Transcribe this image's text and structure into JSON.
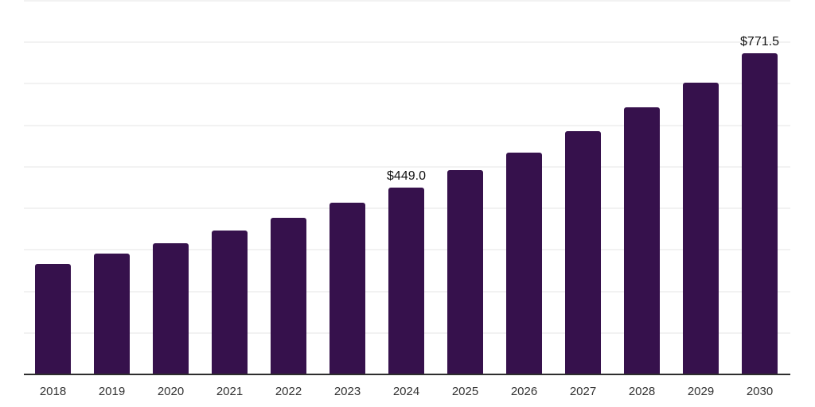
{
  "chart": {
    "background_color": "#ffffff",
    "bar_color": "#36114C",
    "gridline_color": "#f2f2f2",
    "axis_line_color": "#2e2e2e",
    "tick_label_color": "#333333",
    "data_label_color": "#111111"
  },
  "chart_data": {
    "type": "bar",
    "title": "",
    "xlabel": "",
    "ylabel": "",
    "categories": [
      "2018",
      "2019",
      "2020",
      "2021",
      "2022",
      "2023",
      "2024",
      "2025",
      "2026",
      "2027",
      "2028",
      "2029",
      "2030"
    ],
    "values": [
      265,
      289,
      314,
      344,
      375,
      411,
      449.0,
      490,
      533,
      584,
      641,
      701,
      771.5
    ],
    "data_labels": [
      {
        "category": "2024",
        "index": 6,
        "text": "$449.0"
      },
      {
        "category": "2030",
        "index": 12,
        "text": "$771.5"
      }
    ],
    "ylim": [
      0,
      900
    ],
    "gridline_step": 100,
    "grid": true,
    "legend": false,
    "y_axis_labels_visible": false,
    "currency_prefix": "$"
  }
}
